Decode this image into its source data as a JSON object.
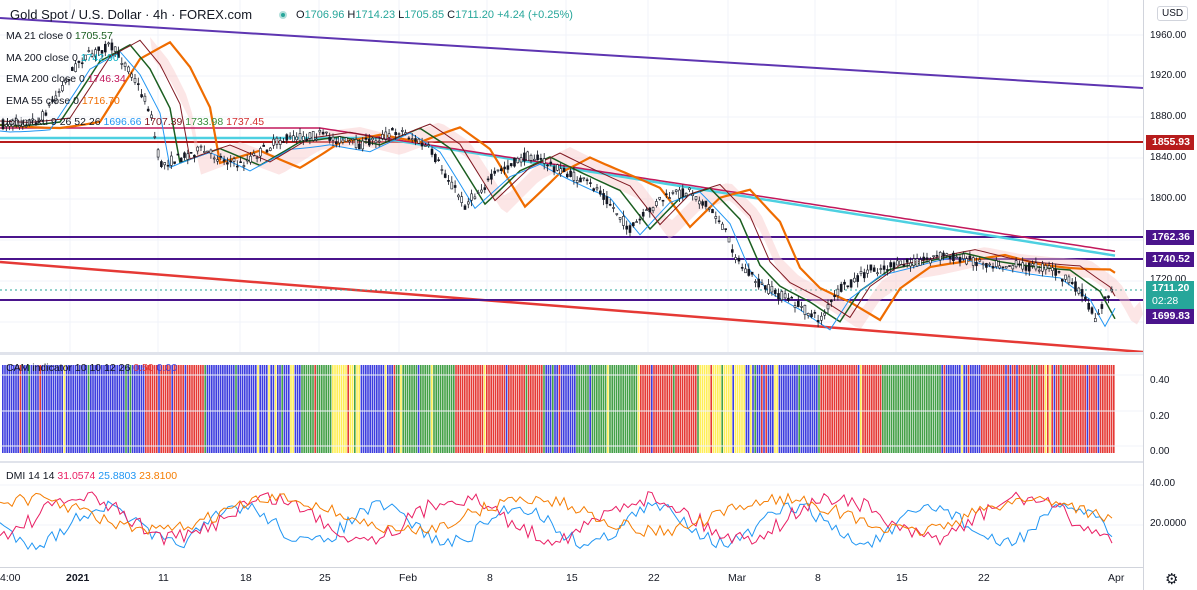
{
  "header": {
    "title": "Gold Spot / U.S. Dollar · 4h · FOREX.com",
    "open_label": "O",
    "open": "1706.96",
    "high_label": "H",
    "high": "1714.23",
    "low_label": "L",
    "low": "1705.85",
    "close_label": "C",
    "close": "1711.20",
    "change": "+4.24 (+0.25%)"
  },
  "currency": "USD",
  "indicators": {
    "ma21": {
      "label": "MA 21 close 0",
      "value": "1705.57",
      "color": "#1b5e20"
    },
    "ma200": {
      "label": "MA 200 close 0",
      "value": "1742.90",
      "color": "#4dd0e1"
    },
    "ema200": {
      "label": "EMA 200 close 0",
      "value": "1746.34",
      "color": "#c2185b"
    },
    "ema55": {
      "label": "EMA 55 close 0",
      "value": "1716.70",
      "color": "#ef6c00"
    },
    "ichimoku": {
      "label": "Ichimoku 9 26 52 26",
      "v1": "1696.66",
      "v2": "1707.39",
      "v3": "1733.98",
      "v4": "1737.45"
    }
  },
  "price_axis": {
    "ticks": [
      "1960.00",
      "1920.00",
      "1880.00",
      "1840.00",
      "1800.00",
      "1720.00"
    ]
  },
  "levels": [
    {
      "price": "1855.93",
      "color": "#b71c1c"
    },
    {
      "price": "1762.36",
      "color": "#4a148c"
    },
    {
      "price": "1740.52",
      "color": "#4a148c"
    },
    {
      "price": "1711.20",
      "color": "#26a69a",
      "countdown": "02:28"
    },
    {
      "price": "1699.83",
      "color": "#4a148c"
    }
  ],
  "cam": {
    "label": "CAM indicator 10 10 12 26",
    "v1": "0.50",
    "v2": "0.00",
    "ticks": [
      "0.40",
      "0.20",
      "0.00"
    ],
    "colors": {
      "blue": "#3d3dde",
      "yellow": "#ffee58",
      "red": "#e53935",
      "green": "#43a047"
    }
  },
  "dmi": {
    "label": "DMI 14 14",
    "v1": "31.0574",
    "v2": "25.8803",
    "v3": "23.8100",
    "colors": {
      "plus": "#2196f3",
      "minus": "#e91e63",
      "adx": "#f57c00"
    },
    "ticks": [
      "40.00",
      "20.0000"
    ]
  },
  "time_axis": [
    {
      "label": "4:00"
    },
    {
      "label": "2021"
    },
    {
      "label": "11"
    },
    {
      "label": "18"
    },
    {
      "label": "25"
    },
    {
      "label": "Feb"
    },
    {
      "label": "8"
    },
    {
      "label": "15"
    },
    {
      "label": "22"
    },
    {
      "label": "Mar"
    },
    {
      "label": "8"
    },
    {
      "label": "15"
    },
    {
      "label": "22"
    },
    {
      "label": "Apr"
    }
  ],
  "icons": {
    "settings": "gear-icon"
  }
}
